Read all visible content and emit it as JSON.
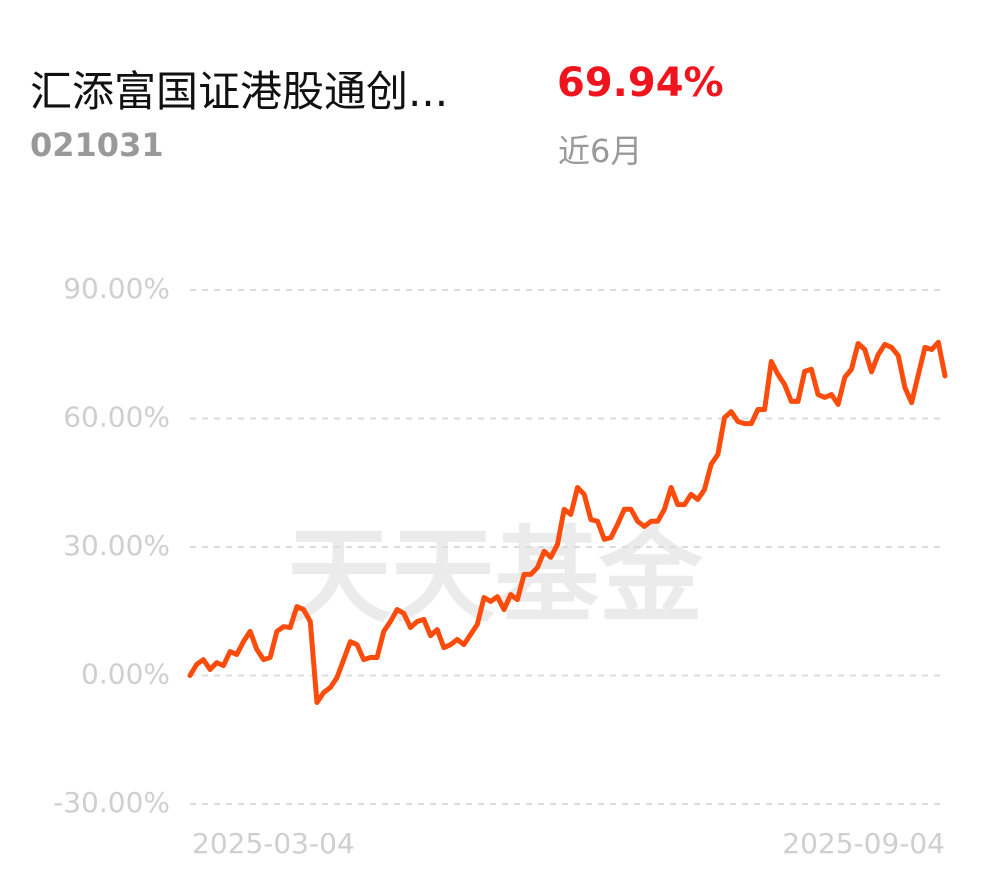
{
  "header": {
    "title": "汇添富国证港股通创...",
    "code": "021031",
    "return": "69.94%",
    "period": "近6月"
  },
  "chart_data": {
    "type": "line",
    "watermark": "天天基金",
    "categories": [
      "2025-03-04",
      null,
      null,
      null,
      null,
      null,
      null,
      null,
      null,
      null,
      null,
      null,
      null,
      null,
      null,
      null,
      null,
      null,
      null,
      null,
      null,
      null,
      null,
      null,
      null,
      null,
      null,
      null,
      null,
      null,
      null,
      null,
      null,
      null,
      null,
      null,
      null,
      null,
      null,
      null,
      null,
      null,
      null,
      null,
      null,
      null,
      null,
      null,
      null,
      null,
      null,
      null,
      null,
      null,
      null,
      null,
      null,
      null,
      null,
      null,
      null,
      null,
      null,
      null,
      null,
      null,
      null,
      null,
      null,
      null,
      null,
      null,
      null,
      null,
      null,
      null,
      null,
      null,
      null,
      null,
      null,
      null,
      null,
      null,
      null,
      null,
      null,
      null,
      null,
      null,
      null,
      null,
      null,
      null,
      null,
      null,
      null,
      null,
      null,
      null,
      null,
      null,
      null,
      null,
      null,
      null,
      null,
      null,
      null,
      null,
      null,
      null,
      null,
      "2025-09-04"
    ],
    "series": [
      {
        "color": "#fc4c0c",
        "values": [
          0,
          2.6,
          3.7,
          1.4,
          3.0,
          2.3,
          5.6,
          4.9,
          7.9,
          10.3,
          6.1,
          3.7,
          4.2,
          10.3,
          11.4,
          11.2,
          16.1,
          15.4,
          12.6,
          -6.3,
          -4.0,
          -2.8,
          -0.5,
          3.7,
          7.9,
          7.2,
          3.7,
          4.2,
          4.2,
          10.3,
          12.6,
          15.4,
          14.5,
          11.2,
          12.6,
          13.1,
          9.3,
          10.7,
          6.5,
          7.2,
          8.4,
          7.2,
          9.6,
          11.9,
          18.2,
          17.3,
          18.4,
          15.4,
          18.9,
          17.7,
          23.6,
          23.6,
          25.2,
          29.0,
          27.6,
          30.6,
          38.8,
          37.6,
          43.9,
          42.3,
          36.4,
          36.0,
          31.8,
          32.2,
          35.3,
          38.8,
          38.8,
          36.0,
          34.8,
          36.0,
          36.0,
          38.8,
          43.9,
          39.9,
          39.9,
          42.3,
          41.1,
          43.4,
          49.3,
          51.6,
          60.2,
          61.6,
          59.3,
          58.8,
          58.8,
          62.1,
          62.1,
          73.3,
          70.3,
          67.9,
          64.0,
          64.0,
          71.0,
          71.5,
          65.6,
          64.9,
          65.6,
          63.3,
          69.6,
          71.5,
          77.5,
          76.1,
          70.9,
          74.9,
          77.3,
          76.6,
          74.7,
          67.2,
          63.7,
          70.2,
          76.6,
          76.1,
          77.8,
          69.94
        ]
      }
    ],
    "ylim": [
      -30,
      90
    ],
    "yticks": [
      {
        "value": -30,
        "label": "-30.00%"
      },
      {
        "value": 0,
        "label": "0.00%"
      },
      {
        "value": 30,
        "label": "30.00%"
      },
      {
        "value": 60,
        "label": "60.00%"
      },
      {
        "value": 90,
        "label": "90.00%"
      }
    ],
    "grid": true
  }
}
